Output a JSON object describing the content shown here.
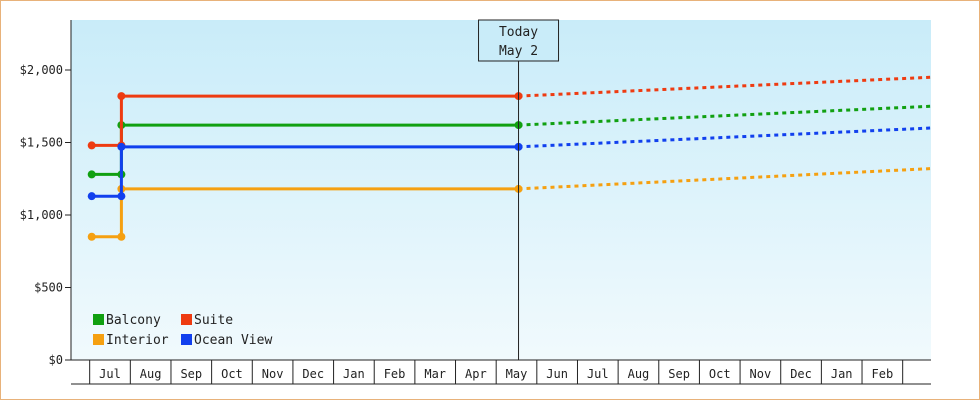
{
  "chart_data": {
    "type": "line",
    "y_ticks": [
      "$0",
      "$500",
      "$1,000",
      "$1,500",
      "$2,000"
    ],
    "y_tick_values": [
      0,
      500,
      1000,
      1500,
      2000
    ],
    "ylim": [
      0,
      2000
    ],
    "x_months": [
      "Jul",
      "Aug",
      "Sep",
      "Oct",
      "Nov",
      "Dec",
      "Jan",
      "Feb",
      "Mar",
      "Apr",
      "May",
      "Jun",
      "Jul",
      "Aug",
      "Sep",
      "Oct",
      "Nov",
      "Dec",
      "Jan",
      "Feb"
    ],
    "today_marker": {
      "line1": "Today",
      "line2": "May 2",
      "position_month": 10.05
    },
    "series": [
      {
        "name": "Balcony",
        "color": "#11a011",
        "points": [
          [
            -0.45,
            1280
          ],
          [
            0.28,
            1280
          ],
          [
            0.28,
            1620
          ],
          [
            10.05,
            1620
          ]
        ],
        "forecast_end": [
          20.35,
          1750
        ]
      },
      {
        "name": "Suite",
        "color": "#ee3b11",
        "points": [
          [
            -0.45,
            1480
          ],
          [
            0.28,
            1480
          ],
          [
            0.28,
            1820
          ],
          [
            10.05,
            1820
          ]
        ],
        "forecast_end": [
          20.35,
          1950
        ]
      },
      {
        "name": "Interior",
        "color": "#f5a011",
        "points": [
          [
            -0.45,
            850
          ],
          [
            0.28,
            850
          ],
          [
            0.28,
            1180
          ],
          [
            10.05,
            1180
          ]
        ],
        "forecast_end": [
          20.35,
          1320
        ]
      },
      {
        "name": "Ocean View",
        "color": "#1140ee",
        "points": [
          [
            -0.45,
            1130
          ],
          [
            0.28,
            1130
          ],
          [
            0.28,
            1470
          ],
          [
            10.05,
            1470
          ]
        ],
        "forecast_end": [
          20.35,
          1600
        ]
      }
    ],
    "legend": [
      {
        "name": "Balcony",
        "color": "#11a011"
      },
      {
        "name": "Suite",
        "color": "#ee3b11"
      },
      {
        "name": "Interior",
        "color": "#f5a011"
      },
      {
        "name": "Ocean View",
        "color": "#1140ee"
      }
    ],
    "legend_position": "bottom-left",
    "grid": false
  }
}
